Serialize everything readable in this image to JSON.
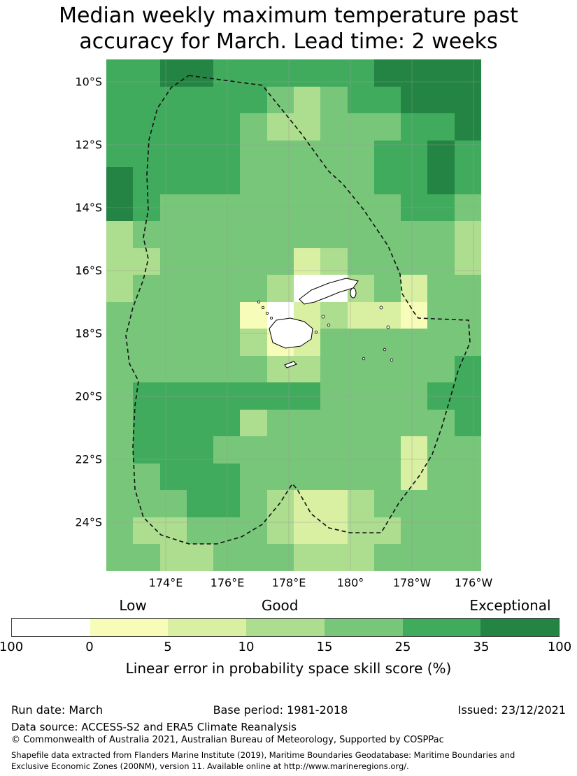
{
  "title": {
    "line1": "Median weekly maximum temperature past",
    "line2": "accuracy for March. Lead time: 2 weeks"
  },
  "chart_data": {
    "type": "heatmap",
    "title": "Median weekly maximum temperature past accuracy for March. Lead time: 2 weeks",
    "region": "Fiji Exclusive Economic Zone (dashed boundary)",
    "x_ticks": [
      "174°E",
      "176°E",
      "178°E",
      "180°",
      "178°W",
      "176°W"
    ],
    "y_ticks": [
      "10°S",
      "12°S",
      "14°S",
      "16°S",
      "18°S",
      "20°S",
      "22°S",
      "24°S"
    ],
    "gridlines": true,
    "colorbar": {
      "ticks": [
        "100",
        "0",
        "5",
        "10",
        "15",
        "25",
        "35",
        "100"
      ],
      "segment_colors": [
        "#ffffff",
        "#f7fcb9",
        "#d9f0a3",
        "#addd8e",
        "#78c679",
        "#41ab5d",
        "#238443"
      ],
      "qual_labels": [
        {
          "text": "Low",
          "pos": 0.222
        },
        {
          "text": "Good",
          "pos": 0.49
        },
        {
          "text": "Exceptional",
          "pos": 0.91
        }
      ],
      "caption": "Linear error in probability space skill score (%)"
    },
    "grid": {
      "cols": 14,
      "rows": 19,
      "palette": [
        "#ffffff",
        "#f7fcb9",
        "#d9f0a3",
        "#addd8e",
        "#78c679",
        "#41ab5d",
        "#238443"
      ],
      "cells": [
        [
          5,
          5,
          6,
          6,
          5,
          5,
          5,
          5,
          5,
          5,
          6,
          6,
          6,
          6
        ],
        [
          5,
          5,
          5,
          5,
          5,
          5,
          4,
          3,
          4,
          5,
          5,
          6,
          6,
          6
        ],
        [
          5,
          5,
          5,
          5,
          5,
          4,
          3,
          3,
          4,
          4,
          4,
          5,
          5,
          6
        ],
        [
          5,
          5,
          5,
          5,
          5,
          4,
          4,
          4,
          4,
          4,
          5,
          5,
          6,
          5
        ],
        [
          6,
          5,
          5,
          5,
          5,
          4,
          4,
          4,
          4,
          4,
          5,
          5,
          6,
          5
        ],
        [
          6,
          5,
          4,
          4,
          4,
          4,
          4,
          4,
          4,
          4,
          4,
          5,
          5,
          4
        ],
        [
          3,
          4,
          4,
          4,
          4,
          4,
          4,
          4,
          4,
          4,
          4,
          4,
          4,
          3
        ],
        [
          3,
          3,
          4,
          4,
          4,
          4,
          4,
          2,
          3,
          4,
          4,
          4,
          4,
          3
        ],
        [
          3,
          4,
          4,
          4,
          4,
          4,
          3,
          0,
          0,
          3,
          4,
          2,
          4,
          4
        ],
        [
          4,
          4,
          4,
          4,
          4,
          1,
          0,
          2,
          3,
          2,
          2,
          1,
          4,
          4
        ],
        [
          4,
          4,
          4,
          4,
          4,
          3,
          1,
          2,
          4,
          4,
          4,
          4,
          4,
          4
        ],
        [
          4,
          4,
          4,
          4,
          4,
          4,
          3,
          3,
          4,
          4,
          4,
          4,
          4,
          5
        ],
        [
          4,
          5,
          5,
          5,
          5,
          5,
          5,
          5,
          4,
          4,
          4,
          4,
          5,
          5
        ],
        [
          4,
          5,
          5,
          5,
          5,
          3,
          4,
          4,
          4,
          4,
          4,
          4,
          4,
          5
        ],
        [
          4,
          5,
          5,
          5,
          4,
          4,
          4,
          4,
          4,
          4,
          4,
          2,
          4,
          4
        ],
        [
          4,
          4,
          5,
          5,
          5,
          4,
          4,
          4,
          4,
          4,
          4,
          2,
          4,
          4
        ],
        [
          4,
          4,
          4,
          5,
          5,
          4,
          3,
          2,
          2,
          3,
          4,
          4,
          4,
          4
        ],
        [
          4,
          3,
          3,
          4,
          4,
          4,
          3,
          2,
          2,
          3,
          3,
          4,
          4,
          4
        ],
        [
          4,
          4,
          3,
          3,
          4,
          4,
          4,
          3,
          3,
          3,
          4,
          4,
          4,
          4
        ]
      ]
    }
  },
  "footer": {
    "run_date": "Run date: March",
    "base_period": "Base period: 1981-2018",
    "issued": "Issued: 23/12/2021",
    "data_source": "Data source: ACCESS-S2 and ERA5 Climate Reanalysis",
    "copyright": "© Commonwealth of Australia 2021, Australian Bureau of Meteorology, Supported by COSPPac",
    "shapefile_line1": "Shapefile data extracted from Flanders Marine Institute (2019), Maritime Boundaries Geodatabase: Maritime Boundaries and",
    "shapefile_line2": "Exclusive Economic Zones (200NM), version 11. Available online at http://www.marineregions.org/."
  }
}
